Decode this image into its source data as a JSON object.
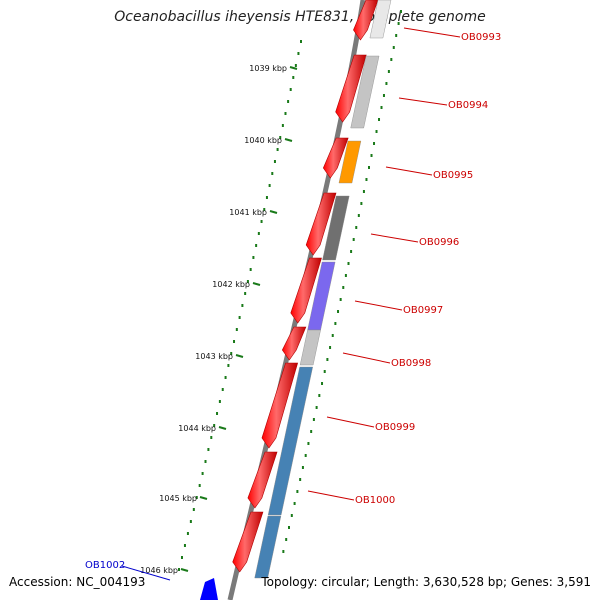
{
  "title": "Oceanobacillus iheyensis HTE831, complete genome",
  "footer": {
    "accession": "Accession: NC_004193",
    "topology": "Topology: circular; Length: 3,630,528 bp; Genes: 3,591"
  },
  "colors": {
    "backbone": "#7a7a7a",
    "forward_strand": "#ff0000",
    "ruler": "#1a7a1a",
    "label_reverse": "#cc0000",
    "label_forward": "#0000cc"
  },
  "ruler_labels": [
    "1039 kbp",
    "1040 kbp",
    "1041 kbp",
    "1042 kbp",
    "1043 kbp",
    "1044 kbp",
    "1045 kbp",
    "1046 kbp"
  ],
  "genes": [
    {
      "label": "OB0993",
      "color": "#e8e8e8",
      "strand": "reverse"
    },
    {
      "label": "OB0994",
      "color": "#c4c4c4",
      "strand": "reverse"
    },
    {
      "label": "OB0995",
      "color": "#ff9900",
      "strand": "reverse"
    },
    {
      "label": "OB0996",
      "color": "#707070",
      "strand": "reverse"
    },
    {
      "label": "OB0997",
      "color": "#7b68ee",
      "strand": "reverse"
    },
    {
      "label": "OB0998",
      "color": "#c4c4c4",
      "strand": "reverse"
    },
    {
      "label": "OB0999",
      "color": "#4682b4",
      "strand": "reverse"
    },
    {
      "label": "OB1000",
      "color": "#4682b4",
      "strand": "reverse"
    },
    {
      "label": "OB1002",
      "color": "#0000ff",
      "strand": "forward"
    }
  ]
}
